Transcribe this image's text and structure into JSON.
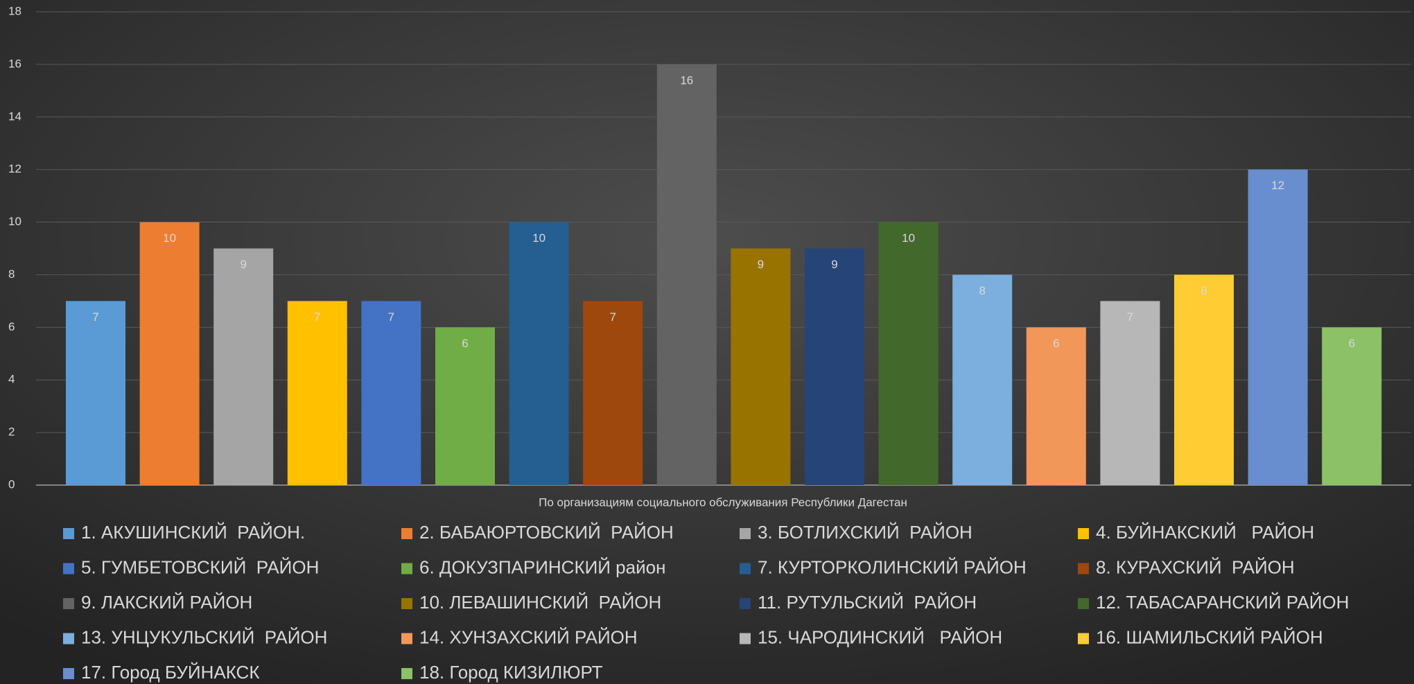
{
  "chart_data": {
    "type": "bar",
    "categories": [
      "По организациям социального обслуживания Республики Дагестан"
    ],
    "series": [
      {
        "name": "1. АКУШИНСКИЙ  РАЙОН.",
        "color": "#5b9bd5",
        "values": [
          7
        ]
      },
      {
        "name": "2. БАБАЮРТОВСКИЙ  РАЙОН",
        "color": "#ed7d31",
        "values": [
          10
        ]
      },
      {
        "name": "3. БОТЛИХСКИЙ  РАЙОН",
        "color": "#a5a5a5",
        "values": [
          9
        ]
      },
      {
        "name": "4. БУЙНАКСКИЙ   РАЙОН",
        "color": "#ffc000",
        "values": [
          7
        ]
      },
      {
        "name": "5. ГУМБЕТОВСКИЙ  РАЙОН",
        "color": "#4472c4",
        "values": [
          7
        ]
      },
      {
        "name": "6. ДОКУЗПАРИНСКИЙ район",
        "color": "#70ad47",
        "values": [
          6
        ]
      },
      {
        "name": "7. КУРТОРКОЛИНСКИЙ РАЙОН",
        "color": "#255e91",
        "values": [
          10
        ]
      },
      {
        "name": "8. КУРАХСКИЙ  РАЙОН",
        "color": "#9e480e",
        "values": [
          7
        ]
      },
      {
        "name": "9. ЛАКСКИЙ РАЙОН",
        "color": "#636363",
        "values": [
          16
        ]
      },
      {
        "name": "10. ЛЕВАШИНСКИЙ  РАЙОН",
        "color": "#997300",
        "values": [
          9
        ]
      },
      {
        "name": "11. РУТУЛЬСКИЙ  РАЙОН",
        "color": "#264478",
        "values": [
          9
        ]
      },
      {
        "name": "12. ТАБАСАРАНСКИЙ РАЙОН",
        "color": "#43682b",
        "values": [
          10
        ]
      },
      {
        "name": "13. УНЦУКУЛЬСКИЙ  РАЙОН",
        "color": "#7cafdd",
        "values": [
          8
        ]
      },
      {
        "name": "14. ХУНЗАХСКИЙ РАЙОН",
        "color": "#f1975a",
        "values": [
          6
        ]
      },
      {
        "name": "15. ЧАРОДИНСКИЙ   РАЙОН",
        "color": "#b7b7b7",
        "values": [
          7
        ]
      },
      {
        "name": "16. ШАМИЛЬСКИЙ РАЙОН",
        "color": "#ffcd33",
        "values": [
          8
        ]
      },
      {
        "name": "17. Город БУЙНАКСК",
        "color": "#698ed0",
        "values": [
          12
        ]
      },
      {
        "name": "18. Город КИЗИЛЮРТ",
        "color": "#8cc168",
        "values": [
          6
        ]
      }
    ],
    "ylim": [
      0,
      18
    ],
    "yticks": [
      0,
      2,
      4,
      6,
      8,
      10,
      12,
      14,
      16,
      18
    ],
    "grid": true,
    "legend": "bottom"
  }
}
